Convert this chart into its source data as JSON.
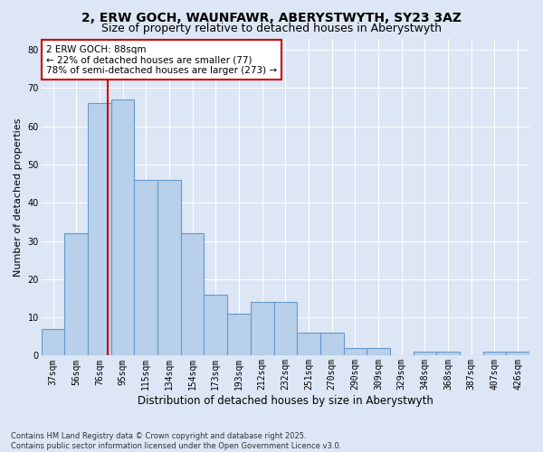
{
  "title_line1": "2, ERW GOCH, WAUNFAWR, ABERYSTWYTH, SY23 3AZ",
  "title_line2": "Size of property relative to detached houses in Aberystwyth",
  "xlabel": "Distribution of detached houses by size in Aberystwyth",
  "ylabel": "Number of detached properties",
  "categories": [
    "37sqm",
    "56sqm",
    "76sqm",
    "95sqm",
    "115sqm",
    "134sqm",
    "154sqm",
    "173sqm",
    "193sqm",
    "212sqm",
    "232sqm",
    "251sqm",
    "270sqm",
    "290sqm",
    "309sqm",
    "329sqm",
    "348sqm",
    "368sqm",
    "387sqm",
    "407sqm",
    "426sqm"
  ],
  "values": [
    7,
    32,
    66,
    67,
    46,
    46,
    32,
    16,
    11,
    14,
    14,
    6,
    6,
    2,
    2,
    0,
    1,
    1,
    0,
    1,
    1
  ],
  "bar_color": "#b8d0ea",
  "bar_edge_color": "#6699cc",
  "red_line_x": 2.35,
  "annotation_text": "2 ERW GOCH: 88sqm\n← 22% of detached houses are smaller (77)\n78% of semi-detached houses are larger (273) →",
  "annotation_box_facecolor": "#ffffff",
  "annotation_box_edgecolor": "#cc0000",
  "ylim": [
    0,
    83
  ],
  "yticks": [
    0,
    10,
    20,
    30,
    40,
    50,
    60,
    70,
    80
  ],
  "footer": "Contains HM Land Registry data © Crown copyright and database right 2025.\nContains public sector information licensed under the Open Government Licence v3.0.",
  "background_color": "#dce6f5",
  "plot_bg_color": "#dce6f5",
  "grid_color": "#ffffff",
  "title_fontsize": 10,
  "subtitle_fontsize": 9,
  "tick_fontsize": 7,
  "xlabel_fontsize": 8.5,
  "ylabel_fontsize": 8,
  "annot_fontsize": 7.5,
  "footer_fontsize": 6
}
